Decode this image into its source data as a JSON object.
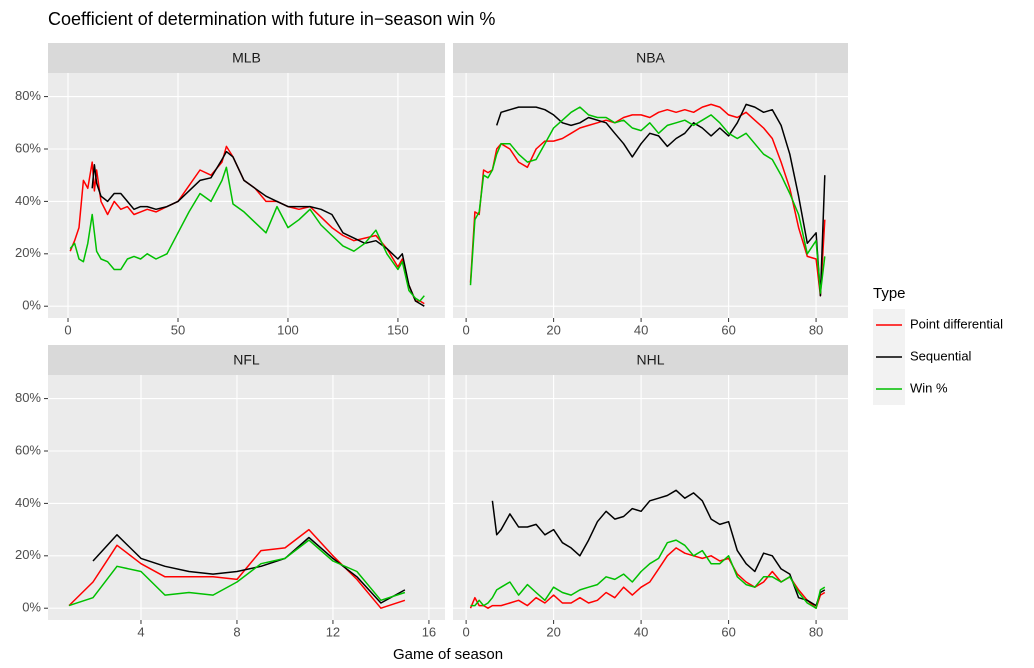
{
  "title": "Coefficient of determination with future in−season win %",
  "x_label": "Game of season",
  "legend_title": "Type",
  "ylim": [
    -4.5,
    89
  ],
  "yticks": [
    {
      "value": 0,
      "label": "0%"
    },
    {
      "value": 20,
      "label": "20%"
    },
    {
      "value": 40,
      "label": "40%"
    },
    {
      "value": 60,
      "label": "60%"
    },
    {
      "value": 80,
      "label": "80%"
    }
  ],
  "grid": true,
  "chart_data": [
    {
      "type": "line",
      "title": "MLB",
      "xlim": [
        -9.1,
        171.4
      ],
      "xticks": [
        0,
        50,
        100,
        150
      ],
      "x": [
        1,
        3,
        5,
        7,
        9,
        11,
        12,
        13,
        15,
        18,
        21,
        24,
        27,
        30,
        33,
        36,
        40,
        45,
        50,
        55,
        60,
        65,
        70,
        72,
        75,
        80,
        85,
        90,
        95,
        100,
        105,
        110,
        115,
        120,
        125,
        130,
        135,
        140,
        145,
        150,
        152,
        155,
        158,
        160,
        162
      ],
      "series": [
        {
          "name": "Point differential",
          "color": "#ff0000",
          "values": [
            21,
            25,
            30,
            48,
            45,
            55,
            44,
            52,
            40,
            35,
            40,
            37,
            38,
            35,
            36,
            37,
            36,
            38,
            40,
            46,
            52,
            50,
            55,
            61,
            57,
            48,
            45,
            40,
            40,
            38,
            37,
            38,
            34,
            30,
            27,
            25,
            26,
            27,
            22,
            15,
            18,
            8,
            2,
            2,
            1
          ]
        },
        {
          "name": "Sequential",
          "color": "#000000",
          "values": [
            null,
            null,
            null,
            null,
            null,
            45,
            54,
            47,
            42,
            40,
            43,
            43,
            40,
            37,
            38,
            38,
            37,
            38,
            40,
            44,
            48,
            49,
            56,
            59,
            57,
            48,
            45,
            42,
            40,
            38,
            38,
            38,
            37,
            35,
            28,
            26,
            24,
            25,
            22,
            18,
            20,
            8,
            2,
            1,
            0
          ]
        },
        {
          "name": "Win %",
          "color": "#00c000",
          "values": [
            22,
            24,
            18,
            17,
            24,
            35,
            28,
            21,
            18,
            17,
            14,
            14,
            18,
            19,
            18,
            20,
            18,
            20,
            28,
            36,
            43,
            40,
            48,
            53,
            39,
            36,
            32,
            28,
            38,
            30,
            33,
            37,
            31,
            27,
            23,
            21,
            24,
            29,
            20,
            14,
            17,
            6,
            3,
            2,
            4
          ]
        }
      ]
    },
    {
      "type": "line",
      "title": "NBA",
      "xlim": [
        -3,
        87.3
      ],
      "xticks": [
        0,
        20,
        40,
        60,
        80
      ],
      "x": [
        1,
        2,
        3,
        4,
        5,
        6,
        7,
        8,
        10,
        12,
        14,
        16,
        18,
        20,
        22,
        24,
        26,
        28,
        30,
        32,
        34,
        36,
        38,
        40,
        42,
        44,
        46,
        48,
        50,
        52,
        54,
        56,
        58,
        60,
        62,
        64,
        66,
        68,
        70,
        72,
        74,
        76,
        78,
        80,
        81,
        82
      ],
      "series": [
        {
          "name": "Point differential",
          "color": "#ff0000",
          "values": [
            9,
            36,
            35,
            52,
            51,
            52,
            60,
            62,
            60,
            55,
            53,
            60,
            63,
            63,
            64,
            66,
            68,
            69,
            70,
            71,
            70,
            72,
            73,
            73,
            72,
            74,
            75,
            74,
            75,
            74,
            76,
            77,
            76,
            73,
            72,
            74,
            71,
            68,
            64,
            55,
            45,
            30,
            19,
            18,
            4,
            33
          ]
        },
        {
          "name": "Sequential",
          "color": "#000000",
          "values": [
            null,
            null,
            null,
            null,
            null,
            null,
            69,
            74,
            75,
            76,
            76,
            76,
            75,
            73,
            70,
            69,
            70,
            72,
            71,
            70,
            66,
            62,
            57,
            62,
            66,
            65,
            61,
            64,
            66,
            70,
            68,
            65,
            68,
            65,
            70,
            77,
            76,
            74,
            75,
            69,
            58,
            42,
            24,
            28,
            4,
            50
          ]
        },
        {
          "name": "Win %",
          "color": "#00c000",
          "values": [
            8,
            33,
            36,
            50,
            49,
            52,
            58,
            62,
            62,
            58,
            55,
            56,
            62,
            68,
            71,
            74,
            76,
            73,
            72,
            72,
            70,
            71,
            68,
            67,
            70,
            66,
            69,
            70,
            71,
            69,
            71,
            73,
            70,
            66,
            64,
            66,
            62,
            58,
            56,
            50,
            43,
            35,
            20,
            25,
            5,
            19
          ]
        }
      ]
    },
    {
      "type": "line",
      "title": "NFL",
      "xlim": [
        0.125,
        16.67
      ],
      "xticks": [
        4,
        8,
        12,
        16
      ],
      "x": [
        1,
        2,
        3,
        4,
        5,
        6,
        7,
        8,
        9,
        10,
        11,
        12,
        13,
        14,
        15
      ],
      "series": [
        {
          "name": "Point differential",
          "color": "#ff0000",
          "values": [
            1,
            10,
            24,
            17,
            12,
            12,
            12,
            11,
            22,
            23,
            30,
            20,
            11,
            0,
            3
          ]
        },
        {
          "name": "Sequential",
          "color": "#000000",
          "values": [
            null,
            18,
            28,
            19,
            16,
            14,
            13,
            14,
            16,
            19,
            27,
            19,
            12,
            2,
            7
          ]
        },
        {
          "name": "Win %",
          "color": "#00c000",
          "values": [
            1,
            4,
            16,
            14,
            5,
            6,
            5,
            10,
            17,
            19,
            26,
            18,
            14,
            3,
            6
          ]
        }
      ]
    },
    {
      "type": "line",
      "title": "NHL",
      "xlim": [
        -3,
        87.3
      ],
      "xticks": [
        0,
        20,
        40,
        60,
        80
      ],
      "x": [
        1,
        2,
        3,
        4,
        5,
        6,
        7,
        8,
        10,
        12,
        14,
        16,
        18,
        20,
        22,
        24,
        26,
        28,
        30,
        32,
        34,
        36,
        38,
        40,
        42,
        44,
        46,
        48,
        50,
        52,
        54,
        56,
        58,
        60,
        62,
        64,
        66,
        68,
        70,
        72,
        74,
        76,
        78,
        80,
        81,
        82
      ],
      "series": [
        {
          "name": "Point differential",
          "color": "#ff0000",
          "values": [
            0,
            4,
            1,
            1,
            0,
            1,
            1,
            1,
            2,
            3,
            1,
            4,
            2,
            5,
            2,
            2,
            4,
            2,
            3,
            6,
            4,
            8,
            5,
            8,
            10,
            15,
            20,
            23,
            21,
            20,
            19,
            20,
            18,
            19,
            13,
            10,
            8,
            10,
            14,
            10,
            12,
            7,
            3,
            0,
            5,
            6
          ]
        },
        {
          "name": "Sequential",
          "color": "#000000",
          "values": [
            null,
            null,
            null,
            null,
            null,
            41,
            28,
            30,
            36,
            31,
            31,
            32,
            28,
            30,
            25,
            23,
            20,
            26,
            33,
            37,
            34,
            35,
            38,
            37,
            41,
            42,
            43,
            45,
            42,
            44,
            41,
            34,
            32,
            33,
            22,
            17,
            14,
            21,
            20,
            15,
            13,
            4,
            3,
            1,
            6,
            7
          ]
        },
        {
          "name": "Win %",
          "color": "#00c000",
          "values": [
            1,
            1,
            3,
            1,
            2,
            4,
            7,
            8,
            10,
            5,
            9,
            6,
            3,
            8,
            6,
            5,
            7,
            8,
            9,
            12,
            11,
            13,
            10,
            14,
            17,
            19,
            25,
            26,
            24,
            20,
            22,
            17,
            17,
            20,
            12,
            9,
            8,
            12,
            12,
            10,
            12,
            6,
            2,
            0,
            7,
            8
          ]
        }
      ]
    }
  ]
}
